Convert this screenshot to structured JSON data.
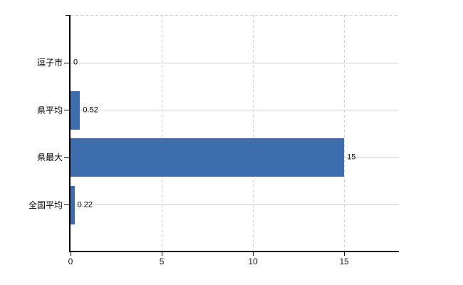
{
  "chart_data": {
    "type": "bar",
    "orientation": "horizontal",
    "title": "",
    "categories": [
      "逗子市",
      "県平均",
      "県最大",
      "全国平均"
    ],
    "values": [
      0,
      0.52,
      15,
      0.22
    ],
    "value_labels": [
      "0",
      "0.52",
      "15",
      "0.22"
    ],
    "x_tick_labels": [
      "0",
      "5",
      "10",
      "15"
    ],
    "x_tick_values": [
      0,
      5,
      10,
      15
    ],
    "xlim": [
      0,
      18
    ],
    "grid": true,
    "legend": false,
    "bar_color": "#3d6dac",
    "axis_color": "#000000",
    "h_gridline_color": "#ccd5cc",
    "v_gridline_color": "#d6cdd4",
    "label_color": "#000000"
  }
}
